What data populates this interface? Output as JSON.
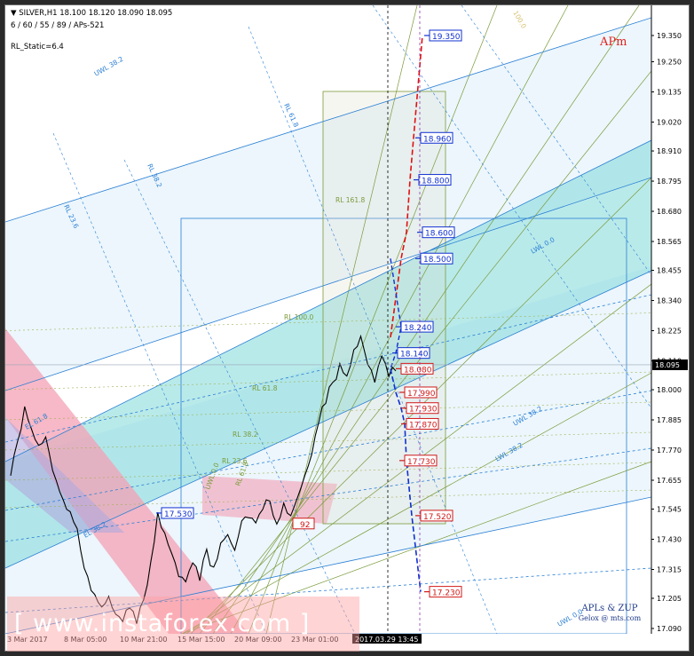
{
  "header": {
    "symbol_line": "SILVER,H1  18.100 18.120 18.090 18.095",
    "params_line": "6 / 60 / 55 / 89 / APs-521",
    "static_line": "RL_Static=6.4"
  },
  "brand": {
    "apm_label": "APm",
    "signature_line1": "APLs & ZUP",
    "signature_line2": "Gelox @ mts.com"
  },
  "watermark": {
    "text": "[ www.instaforex.com ]"
  },
  "cursor_time_label": "2017.03.29 13:45",
  "colors": {
    "price": "#000000",
    "up_arrow": "#e01010",
    "down_arrow": "#1030d0",
    "band_cyan": "#7fd8d8",
    "band_pink": "#f4a0b4",
    "band_purple": "#b0a8dc",
    "fib_blue": "#2a7fd4",
    "fib_green": "#7a9a3a",
    "axis_tag_bg": "#000000"
  },
  "chart_data": {
    "type": "line",
    "title": "SILVER,H1",
    "timeframe": "H1",
    "ohlc_last": {
      "open": 18.1,
      "high": 18.12,
      "low": 18.09,
      "close": 18.095
    },
    "current_price": 18.095,
    "ylim": [
      17.09,
      19.38
    ],
    "y_ticks": [
      19.35,
      19.25,
      19.135,
      19.02,
      18.91,
      18.795,
      18.68,
      18.565,
      18.455,
      18.34,
      18.225,
      18.11,
      18.0,
      17.885,
      17.77,
      17.655,
      17.545,
      17.43,
      17.315,
      17.205,
      17.09
    ],
    "y_tick_labels": [
      "19.350",
      "19.250",
      "19.135",
      "19.020",
      "18.910",
      "18.795",
      "18.680",
      "18.565",
      "18.455",
      "18.340",
      "18.225",
      "18.110",
      "18.000",
      "17.885",
      "17.770",
      "17.655",
      "17.545",
      "17.430",
      "17.315",
      "17.205",
      "17.090"
    ],
    "x_tick_labels": [
      "3 Mar 2017",
      "8 Mar 05:00",
      "10 Mar 21:00",
      "15 Mar 15:00",
      "20 Mar 09:00",
      "23 Mar 01:00"
    ],
    "series": [
      {
        "values": [
          17.66,
          17.8,
          17.94,
          17.86,
          17.78,
          17.82,
          17.7,
          17.6,
          17.54,
          17.5,
          17.4,
          17.28,
          17.22,
          17.18,
          17.2,
          17.14,
          17.12,
          17.18,
          17.1,
          17.2,
          17.35,
          17.52,
          17.45,
          17.38,
          17.3,
          17.26,
          17.34,
          17.28,
          17.38,
          17.32,
          17.42,
          17.46,
          17.38,
          17.5,
          17.52,
          17.48,
          17.54,
          17.58,
          17.5,
          17.56,
          17.52,
          17.6,
          17.66,
          17.75,
          17.88,
          17.96,
          18.02,
          18.1,
          18.06,
          18.14,
          18.2,
          18.1,
          18.04,
          18.12,
          18.05,
          18.08
        ]
      }
    ],
    "target_levels_up": [
      19.35,
      18.96,
      18.8,
      18.6,
      18.5
    ],
    "target_levels_mid": [
      18.24,
      18.14
    ],
    "target_levels_down": [
      18.08,
      17.99,
      17.93,
      17.87,
      17.73,
      17.52,
      17.23
    ],
    "left_markers": [
      17.53
    ],
    "left_marker_labels": [
      "17.530"
    ],
    "partial_marker_label": "92",
    "level_labels": {
      "up": [
        "19.350",
        "18.960",
        "18.800",
        "18.600",
        "18.500"
      ],
      "mid": [
        "18.240",
        "18.140"
      ],
      "down": [
        "18.080",
        "17.990",
        "17.930",
        "17.870",
        "17.730",
        "17.520",
        "17.230"
      ]
    },
    "fib_labels": [
      "RL 161.8",
      "RL 100.0",
      "RL 61.8",
      "RL 38.2",
      "RL 23.6",
      "RL 61.8",
      "RL 38.2",
      "RL 23.6",
      "RL 61.8",
      "UWL 38.2",
      "EL 61.8",
      "EL 38.2",
      "UWL 0.0",
      "100.0",
      "UWL 38.2",
      "UWL 0.0",
      "LWL 0.0",
      "LWL 38.2"
    ]
  }
}
